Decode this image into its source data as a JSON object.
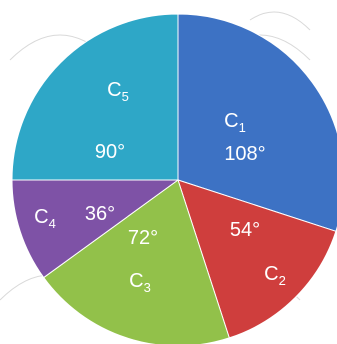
{
  "chart_data": {
    "type": "pie",
    "start_angle_deg": 0,
    "direction": "clockwise",
    "slices": [
      {
        "base": "C",
        "sub": "1",
        "value": 108,
        "value_label": "108°",
        "color": "#3d72c4"
      },
      {
        "base": "C",
        "sub": "2",
        "value": 54,
        "value_label": "54°",
        "color": "#cf3e3d"
      },
      {
        "base": "C",
        "sub": "3",
        "value": 72,
        "value_label": "72°",
        "color": "#92c14a"
      },
      {
        "base": "C",
        "sub": "4",
        "value": 36,
        "value_label": "36°",
        "color": "#7e52a6"
      },
      {
        "base": "C",
        "sub": "5",
        "value": 90,
        "value_label": "90°",
        "color": "#2ea7c7"
      }
    ]
  }
}
